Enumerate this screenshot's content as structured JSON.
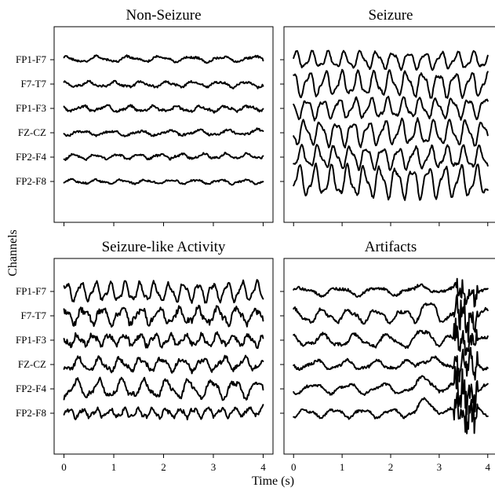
{
  "chart_data": {
    "type": "line",
    "ylabel": "Channels",
    "xlabel": "Time (s)",
    "xlim": [
      0,
      4
    ],
    "xticks": [
      0,
      1,
      2,
      3,
      4
    ],
    "channels": [
      "FP1-F7",
      "F7-T7",
      "FP1-F3",
      "FZ-CZ",
      "FP2-F4",
      "FP2-F8"
    ],
    "panels": [
      {
        "title": "Non-Seizure",
        "show_channel_labels": true,
        "show_x_ticklabels": false,
        "series": [
          {
            "freq": 1.6,
            "amp": 0.12,
            "noise": 0.08,
            "seed": 1
          },
          {
            "freq": 1.9,
            "amp": 0.12,
            "noise": 0.08,
            "seed": 2
          },
          {
            "freq": 2.1,
            "amp": 0.12,
            "noise": 0.09,
            "seed": 3
          },
          {
            "freq": 1.7,
            "amp": 0.11,
            "noise": 0.08,
            "seed": 4
          },
          {
            "freq": 2.3,
            "amp": 0.11,
            "noise": 0.08,
            "seed": 5
          },
          {
            "freq": 2.0,
            "amp": 0.09,
            "noise": 0.06,
            "seed": 6
          }
        ]
      },
      {
        "title": "Seizure",
        "show_channel_labels": false,
        "show_x_ticklabels": false,
        "series": [
          {
            "freq": 3.0,
            "amp": 0.38,
            "noise": 0.07,
            "seed": 7
          },
          {
            "freq": 3.0,
            "amp": 0.55,
            "noise": 0.09,
            "seed": 8
          },
          {
            "freq": 3.0,
            "amp": 0.45,
            "noise": 0.09,
            "seed": 9
          },
          {
            "freq": 3.0,
            "amp": 0.55,
            "noise": 0.09,
            "seed": 10
          },
          {
            "freq": 3.0,
            "amp": 0.5,
            "noise": 0.09,
            "seed": 11
          },
          {
            "freq": 3.0,
            "amp": 0.7,
            "noise": 0.09,
            "seed": 12
          }
        ]
      },
      {
        "title": "Seizure-like Activity",
        "show_channel_labels": true,
        "show_x_ticklabels": true,
        "series": [
          {
            "freq": 3.4,
            "amp": 0.42,
            "noise": 0.12,
            "seed": 13
          },
          {
            "freq": 2.6,
            "amp": 0.35,
            "noise": 0.22,
            "seed": 14
          },
          {
            "freq": 3.2,
            "amp": 0.25,
            "noise": 0.18,
            "seed": 15
          },
          {
            "freq": 2.4,
            "amp": 0.3,
            "noise": 0.16,
            "seed": 16
          },
          {
            "freq": 2.2,
            "amp": 0.4,
            "noise": 0.16,
            "seed": 17
          },
          {
            "freq": 3.6,
            "amp": 0.2,
            "noise": 0.14,
            "seed": 18
          }
        ]
      },
      {
        "title": "Artifacts",
        "show_channel_labels": false,
        "show_x_ticklabels": true,
        "series": [
          {
            "freq": 1.3,
            "amp": 0.18,
            "noise": 0.1,
            "seed": 19,
            "artifact": 0.7
          },
          {
            "freq": 1.8,
            "amp": 0.3,
            "noise": 0.12,
            "seed": 20,
            "artifact": 1.2
          },
          {
            "freq": 1.5,
            "amp": 0.28,
            "noise": 0.12,
            "seed": 21,
            "artifact": 1.0
          },
          {
            "freq": 1.6,
            "amp": 0.2,
            "noise": 0.1,
            "seed": 22,
            "artifact": 0.8
          },
          {
            "freq": 1.4,
            "amp": 0.22,
            "noise": 0.1,
            "seed": 23,
            "artifact": 1.4
          },
          {
            "freq": 1.7,
            "amp": 0.18,
            "noise": 0.09,
            "seed": 24,
            "artifact": 1.6
          }
        ]
      }
    ]
  }
}
